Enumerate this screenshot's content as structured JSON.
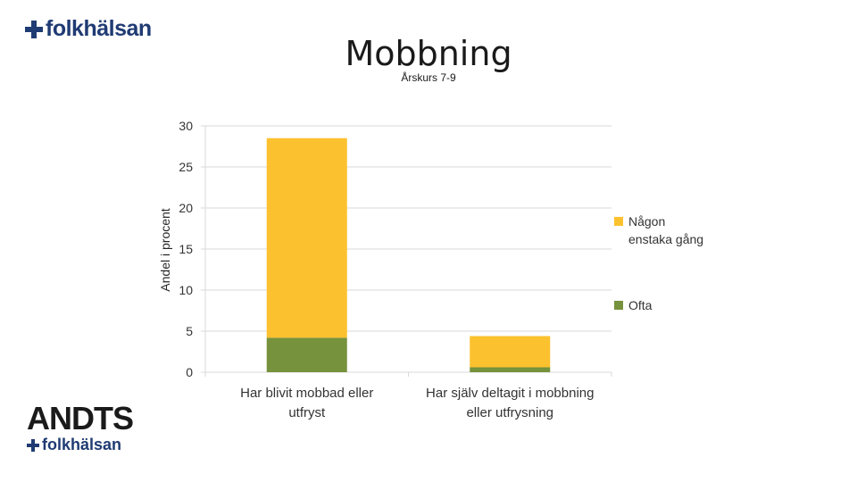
{
  "logo_top": {
    "text": "folkhälsan",
    "icon": "folkhalsan-cross-icon"
  },
  "logo_bottom": {
    "brand": "ANDTS",
    "text": "folkhälsan",
    "icon": "folkhalsan-cross-icon"
  },
  "colors": {
    "ofta": "#76923c",
    "nagon": "#fcc12e",
    "logo_blue": "#1f3b73",
    "grid": "#d9d9d9"
  },
  "chart_data": {
    "type": "bar",
    "stacked": true,
    "title": "Mobbning",
    "subtitle": "Årskurs 7-9",
    "xlabel": "",
    "ylabel": "Andel i procent",
    "ylim": [
      0,
      30
    ],
    "yticks": [
      "0",
      "5",
      "10",
      "15",
      "20",
      "25",
      "30"
    ],
    "grid": true,
    "legend_position": "right",
    "categories": [
      [
        "Har blivit mobbad eller",
        "utfryst"
      ],
      [
        "Har själv deltagit i mobbning",
        "eller utfrysning"
      ]
    ],
    "series": [
      {
        "name": "Ofta",
        "color": "#76923c",
        "values": [
          4.2,
          0.6
        ]
      },
      {
        "name": "Någon enstaka gång",
        "name_lines": [
          "Någon",
          "enstaka gång"
        ],
        "color": "#fcc12e",
        "values": [
          24.3,
          3.8
        ]
      }
    ]
  }
}
